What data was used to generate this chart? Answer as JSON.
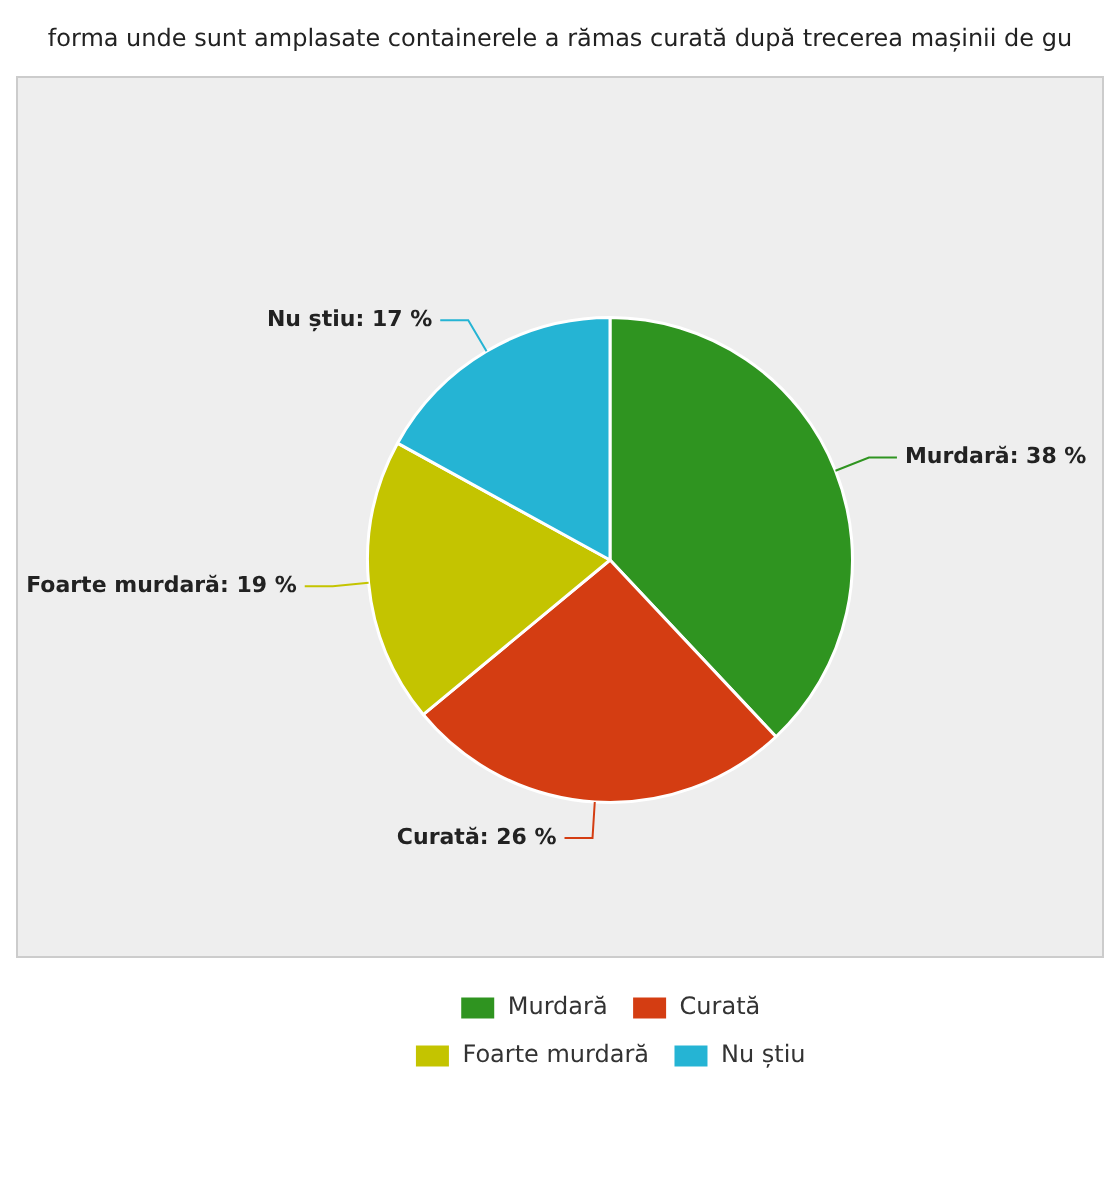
{
  "chart_data": {
    "type": "pie",
    "title": "forma unde sunt amplasate containerele a rămas curată după trecerea mașinii de gu",
    "categories": [
      "Murdară",
      "Curată",
      "Foarte murdară",
      "Nu știu"
    ],
    "values": [
      38,
      26,
      19,
      17
    ],
    "colors": [
      "#2f9420",
      "#d43d12",
      "#c4c400",
      "#25b4d4"
    ],
    "value_labels": [
      "Murdară: 38 %",
      "Curată: 26 %",
      "Foarte murdară: 19 %",
      "Nu știu: 17 %"
    ],
    "legend": "bottom"
  }
}
